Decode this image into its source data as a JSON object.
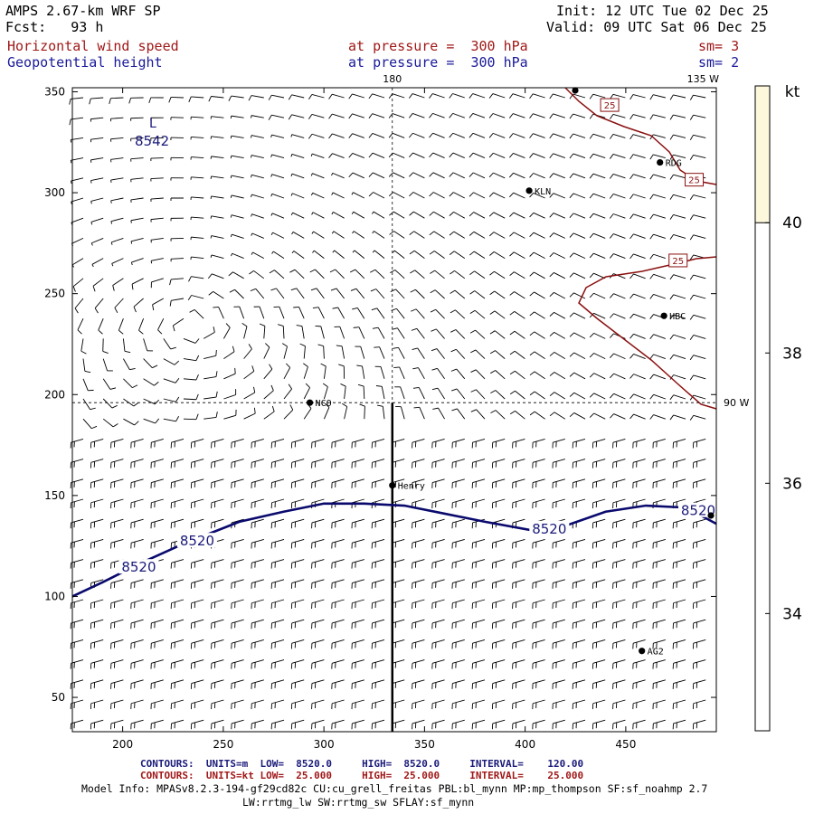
{
  "header": {
    "model": "AMPS 2.67-km WRF SP",
    "fcst": "Fcst:   93 h",
    "init": "Init: 12 UTC Tue 02 Dec 25",
    "valid": "Valid: 09 UTC Sat 06 Dec 25",
    "field1": {
      "name": "Horizontal wind speed",
      "level": "at pressure =  300 hPa",
      "sm": "sm= 3"
    },
    "field2": {
      "name": "Geopotential height",
      "level": "at pressure =  300 hPa",
      "sm": "sm= 2"
    }
  },
  "footer": {
    "row1": {
      "label": "CONTOURS:",
      "units": "UNITS=m",
      "low": "LOW=  8520.0",
      "high": "HIGH=  8520.0",
      "interval": "INTERVAL=    120.00"
    },
    "row2": {
      "label": "CONTOURS:",
      "units": "UNITS=kt",
      "low": "LOW=  25.000",
      "high": "HIGH=  25.000",
      "interval": "INTERVAL=    25.000"
    },
    "model_info_1": "Model Info: MPASv8.2.3-194-gf29cd82c CU:cu_grell_freitas PBL:bl_mynn MP:mp_thompson SF:sf_noahmp 2.7",
    "model_info_2": "LW:rrtmg_lw SW:rrtmg_sw SFLAY:sf_mynn"
  },
  "chart_data": {
    "type": "heatmap",
    "xlim": [
      175,
      495
    ],
    "ylim": [
      33,
      352
    ],
    "xticks": [
      200,
      250,
      300,
      350,
      400,
      450
    ],
    "yticks": [
      50,
      100,
      150,
      200,
      250,
      300,
      350
    ],
    "meridian_labels": [
      {
        "text": "180",
        "x": 334,
        "y": 352
      },
      {
        "text": "135 W",
        "x": 492,
        "y": 352
      },
      {
        "text": "90 W",
        "x": 495,
        "y": 196
      }
    ],
    "meridians_dashed": {
      "vertical_x": 334,
      "horizontal_y": 196
    },
    "colorbar": {
      "unit": "kt",
      "ticks": [
        34,
        36,
        38,
        40
      ],
      "range": [
        32.2,
        42.1
      ],
      "shaded_above": 40,
      "shade_color": "#fdf8dc"
    },
    "stations": [
      {
        "name": "KLN",
        "x": 402,
        "y": 301
      },
      {
        "name": "RDG",
        "x": 467,
        "y": 315
      },
      {
        "name": "HBC",
        "x": 469,
        "y": 239
      },
      {
        "name": "NCO",
        "x": 293,
        "y": 196
      },
      {
        "name": "Henry",
        "x": 334,
        "y": 155
      },
      {
        "name": "AG2",
        "x": 458,
        "y": 73
      }
    ],
    "height_contours": [
      {
        "value": "8520",
        "labels": [
          {
            "text": "8520",
            "x": 208,
            "y": 114
          },
          {
            "text": "8520",
            "x": 237,
            "y": 127
          },
          {
            "text": "8520",
            "x": 412,
            "y": 133
          },
          {
            "text": "8520",
            "x": 486,
            "y": 142
          }
        ],
        "points": [
          [
            175,
            100
          ],
          [
            190,
            107
          ],
          [
            210,
            117
          ],
          [
            230,
            126
          ],
          [
            258,
            137
          ],
          [
            280,
            142
          ],
          [
            300,
            146
          ],
          [
            320,
            146
          ],
          [
            340,
            145
          ],
          [
            360,
            141
          ],
          [
            380,
            137
          ],
          [
            402,
            133
          ],
          [
            420,
            135
          ],
          [
            440,
            142
          ],
          [
            460,
            145
          ],
          [
            480,
            144
          ],
          [
            495,
            136
          ]
        ]
      }
    ],
    "height_low_label": {
      "letter": "L",
      "value": "8542",
      "x": 215,
      "y": 327
    },
    "isotachs": [
      {
        "value": "25",
        "labels": [
          {
            "text": "25",
            "x": 442,
            "y": 343
          },
          {
            "text": "25",
            "x": 484,
            "y": 306
          },
          {
            "text": "25",
            "x": 476,
            "y": 266
          }
        ]
      }
    ],
    "wind_barbs": {
      "grid_dx_units": 12.4,
      "grid_dy_units": 10.4
    }
  }
}
